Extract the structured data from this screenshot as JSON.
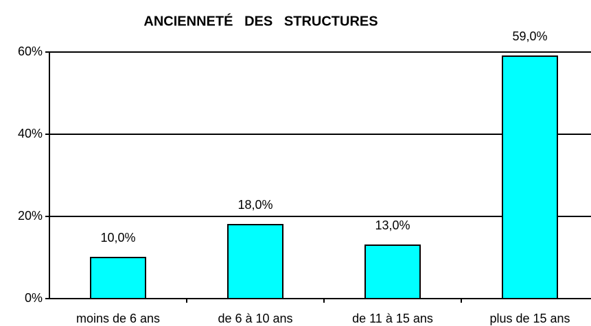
{
  "chart_data": {
    "type": "bar",
    "title": "ANCIENNETÉ   DES   STRUCTURES",
    "categories": [
      "moins de 6 ans",
      "de 6 à 10 ans",
      "de 11 à 15 ans",
      "plus de 15 ans"
    ],
    "values": [
      10,
      18,
      13,
      59
    ],
    "value_labels": [
      "10,0%",
      "18,0%",
      "13,0%",
      "59,0%"
    ],
    "color": "#00ffff",
    "ylim": [
      0,
      60
    ],
    "yticks": [
      {
        "value": 0,
        "label": "0%"
      },
      {
        "value": 20,
        "label": "20%"
      },
      {
        "value": 40,
        "label": "40%"
      },
      {
        "value": 60,
        "label": "60%"
      }
    ],
    "grid": true
  }
}
